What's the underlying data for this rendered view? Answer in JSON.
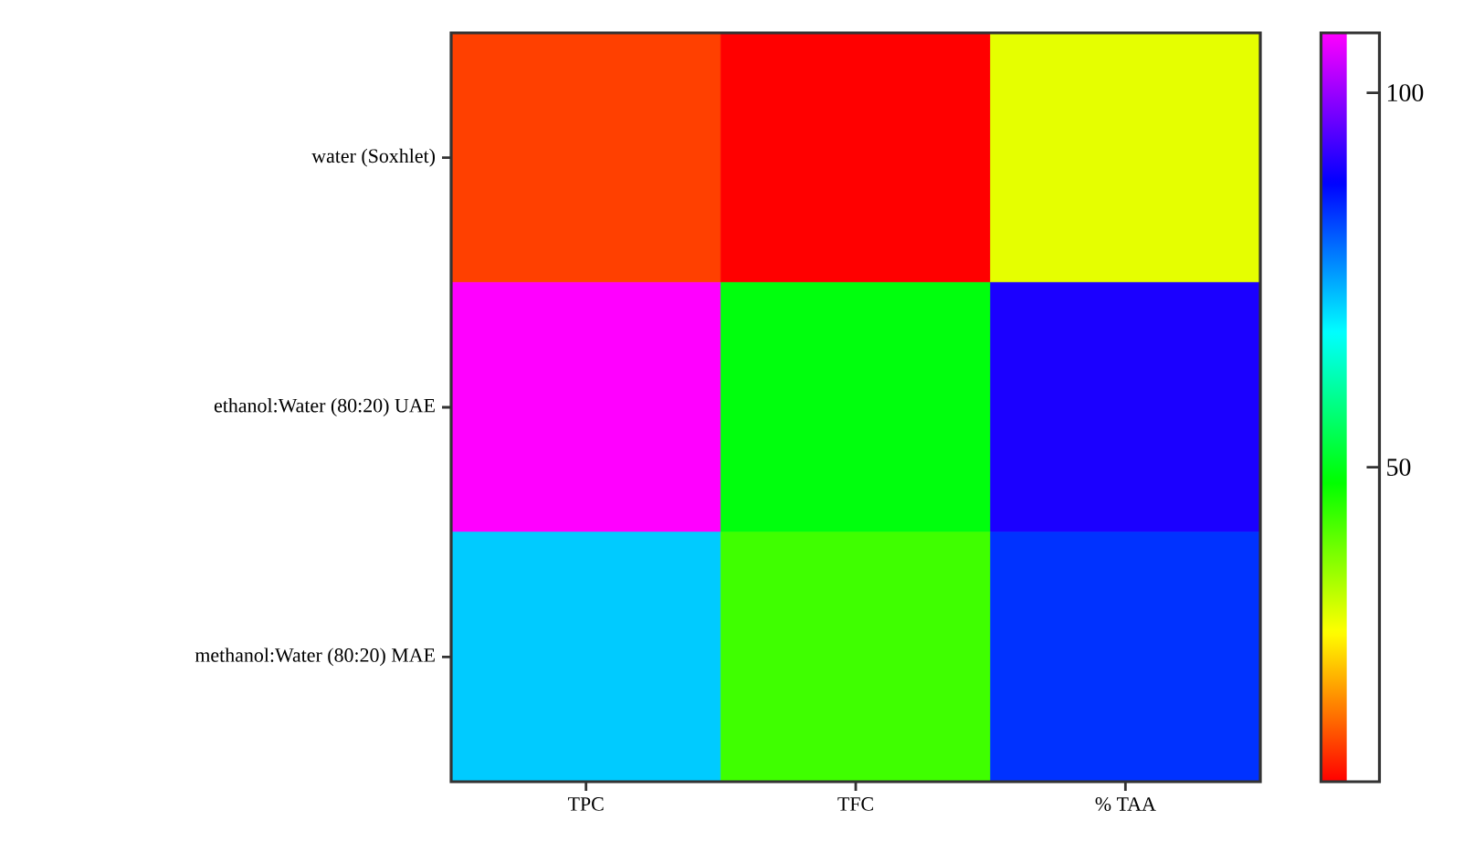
{
  "chart_data": {
    "type": "heatmap",
    "categories": [
      "TPC",
      "TFC",
      "% TAA"
    ],
    "y_categories": [
      "water (Soxhlet)",
      "ethanol:Water (80:20) UAE",
      "methanol:Water (80:20) MAE"
    ],
    "cells": [
      [
        13,
        8,
        30
      ],
      [
        108,
        49,
        90
      ],
      [
        72,
        43,
        84
      ]
    ],
    "clim": [
      8,
      108
    ],
    "cticks": [
      50,
      100
    ]
  }
}
